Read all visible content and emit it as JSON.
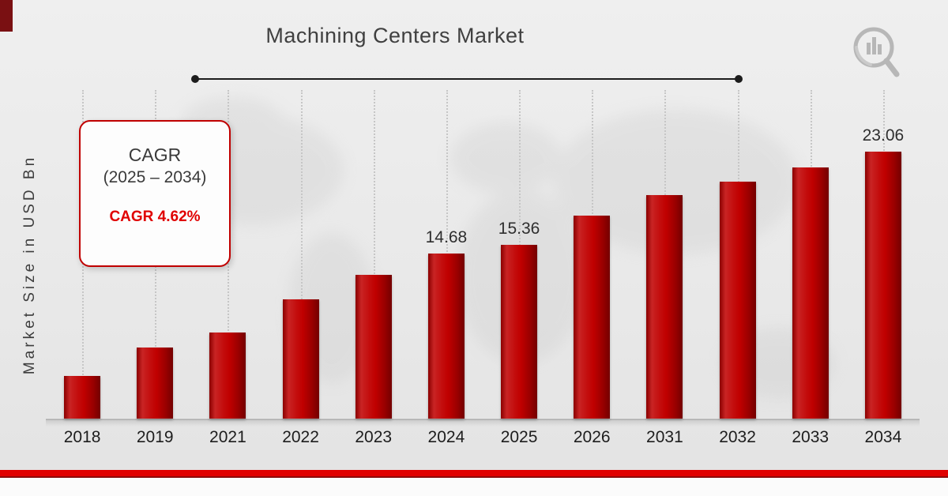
{
  "title": "Machining Centers Market",
  "y_axis_label": "Market Size in USD Bn",
  "cagr_box": {
    "heading": "CAGR",
    "range": "(2025 – 2034)",
    "value_text": "CAGR 4.62%"
  },
  "colors": {
    "bar": "#c00000",
    "accent_red": "#e00000",
    "dark_maroon": "#7a1012",
    "title_text": "#404040",
    "grid_dotted": "#c6c6c6"
  },
  "icons": {
    "logo": "magnifier-bar-chart-logo"
  },
  "chart_data": {
    "type": "bar",
    "title": "Machining Centers Market",
    "xlabel": "",
    "ylabel": "Market Size in USD Bn",
    "categories": [
      "2018",
      "2019",
      "2021",
      "2022",
      "2023",
      "2024",
      "2025",
      "2026",
      "2031",
      "2032",
      "2033",
      "2034"
    ],
    "values": [
      4.5,
      6.9,
      8.1,
      10.9,
      12.9,
      14.68,
      15.36,
      17.8,
      19.5,
      20.6,
      21.8,
      23.06
    ],
    "data_labels": [
      "",
      "",
      "",
      "",
      "",
      "14.68",
      "15.36",
      "",
      "",
      "",
      "",
      "23.06"
    ],
    "unit": "USD Bn",
    "bar_color": "#c00000",
    "ylim": [
      0,
      25
    ],
    "grid": "vertical-dotted",
    "legend": "none",
    "annotation": "CAGR 4.62% (2025 – 2034)"
  }
}
